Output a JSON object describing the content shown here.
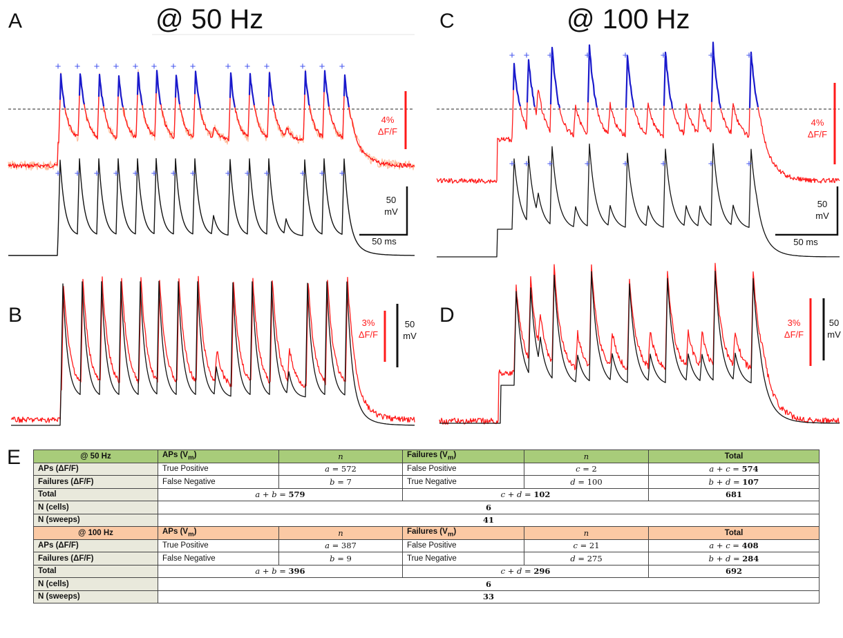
{
  "panels": {
    "A": {
      "letter": "A",
      "title": "@ 50 Hz",
      "ff_scale": "4%",
      "ff_unit": "ΔF/F",
      "mv_scale": "50",
      "mv_unit": "mV",
      "time_scale": "50 ms"
    },
    "B": {
      "letter": "B",
      "ff_scale": "3%",
      "ff_unit": "ΔF/F",
      "mv_scale": "50",
      "mv_unit": "mV"
    },
    "C": {
      "letter": "C",
      "title": "@ 100 Hz",
      "ff_scale": "4%",
      "ff_unit": "ΔF/F",
      "mv_scale": "50",
      "mv_unit": "mV",
      "time_scale": "50 ms"
    },
    "D": {
      "letter": "D",
      "ff_scale": "3%",
      "ff_unit": "ΔF/F",
      "mv_scale": "50",
      "mv_unit": "mV"
    },
    "E": {
      "letter": "E"
    }
  },
  "detection_marker": "+",
  "colors": {
    "fluorescence": "#ff1a1a",
    "fluorescence_raw": "#ffb08a",
    "voltage": "#111111",
    "detected": "#1a1acc",
    "marker": "#4455ee",
    "header_50": "#a8cc7a",
    "header_100": "#fbc9a4",
    "row_label": "#e9e9dc"
  },
  "table": {
    "hz50": {
      "title": "@ 50 Hz",
      "col_aps": "APs (V",
      "col_failures": "Failures (V",
      "sub": "m",
      "col_n": "n",
      "col_total": "Total",
      "rows": {
        "aps": {
          "label": "APs (ΔF/F)",
          "left_label": "True Positive",
          "left_sym": "a",
          "left_val": "572",
          "right_label": "False Positive",
          "right_sym": "c",
          "right_val": "2",
          "total_expr": "a + c = ",
          "total_val": "574"
        },
        "failures": {
          "label": "Failures (ΔF/F)",
          "left_label": "False Negative",
          "left_sym": "b",
          "left_val": "7",
          "right_label": "True Negative",
          "right_sym": "d",
          "right_val": "100",
          "total_expr": "b + d = ",
          "total_val": "107"
        },
        "total": {
          "label": "Total",
          "left_expr": "a + b = ",
          "left_val": "579",
          "right_expr": "c + d = ",
          "right_val": "102",
          "grand": "681"
        }
      },
      "cells_label": "N (cells)",
      "cells": "6",
      "sweeps_label": "N (sweeps)",
      "sweeps": "41"
    },
    "hz100": {
      "title": "@ 100 Hz",
      "col_aps": "APs (V",
      "col_failures": "Failures (V",
      "sub": "m",
      "col_n": "n",
      "col_total": "Total",
      "rows": {
        "aps": {
          "label": "APs (ΔF/F)",
          "left_label": "True Positive",
          "left_sym": "a",
          "left_val": "387",
          "right_label": "False Positive",
          "right_sym": "c",
          "right_val": "21",
          "total_expr": "a + c = ",
          "total_val": "408"
        },
        "failures": {
          "label": "Failures (ΔF/F)",
          "left_label": "False Negative",
          "left_sym": "b",
          "left_val": "9",
          "right_label": "True Negative",
          "right_sym": "d",
          "right_val": "275",
          "total_expr": "b + d = ",
          "total_val": "284"
        },
        "total": {
          "label": "Total",
          "left_expr": "a + b = ",
          "left_val": "396",
          "right_expr": "c + d = ",
          "right_val": "296",
          "grand": "692"
        }
      },
      "cells_label": "N (cells)",
      "cells": "6",
      "sweeps_label": "N (sweeps)",
      "sweeps": "33"
    }
  }
}
